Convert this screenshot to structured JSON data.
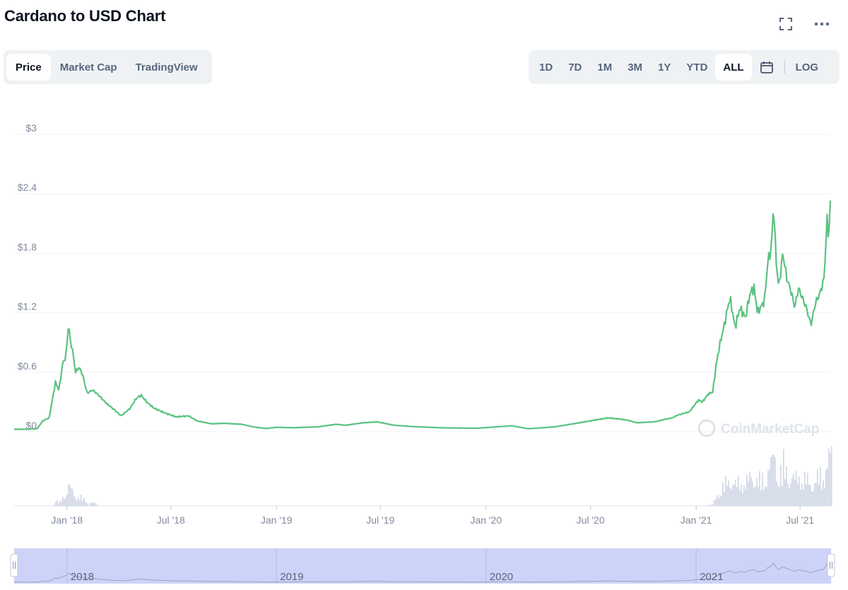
{
  "header": {
    "title": "Cardano to USD Chart",
    "fullscreen_icon": "fullscreen-icon",
    "more_icon": "more-icon"
  },
  "view_tabs": [
    {
      "label": "Price",
      "active": true
    },
    {
      "label": "Market Cap",
      "active": false
    },
    {
      "label": "TradingView",
      "active": false
    }
  ],
  "range_tabs": [
    {
      "label": "1D",
      "active": false
    },
    {
      "label": "7D",
      "active": false
    },
    {
      "label": "1M",
      "active": false
    },
    {
      "label": "3M",
      "active": false
    },
    {
      "label": "1Y",
      "active": false
    },
    {
      "label": "YTD",
      "active": false
    },
    {
      "label": "ALL",
      "active": true
    }
  ],
  "calendar_icon": "calendar-icon",
  "log_label": "LOG",
  "watermark": "CoinMarketCap",
  "colors": {
    "line": "#5bc281",
    "volume": "#cfd6e4",
    "navigator": "#cdd3f8",
    "grid": "#eff2f5",
    "axis_text": "#808a9d"
  },
  "chart_data": {
    "type": "line",
    "title": "Cardano to USD Chart",
    "x_unit": "date",
    "y_ticks": [
      {
        "value": 0,
        "label": "$0"
      },
      {
        "value": 0.6,
        "label": "$0.6"
      },
      {
        "value": 1.2,
        "label": "$1.2"
      },
      {
        "value": 1.8,
        "label": "$1.8"
      },
      {
        "value": 2.4,
        "label": "$2.4"
      },
      {
        "value": 3.0,
        "label": "$3"
      }
    ],
    "ylim": [
      0,
      3.0
    ],
    "xlim": [
      "2017-10-01",
      "2021-08-24"
    ],
    "x_ticks": [
      {
        "date": "2018-01-01",
        "label": "Jan '18"
      },
      {
        "date": "2018-07-01",
        "label": "Jul '18"
      },
      {
        "date": "2019-01-01",
        "label": "Jan '19"
      },
      {
        "date": "2019-07-01",
        "label": "Jul '19"
      },
      {
        "date": "2020-01-01",
        "label": "Jan '20"
      },
      {
        "date": "2020-07-01",
        "label": "Jul '20"
      },
      {
        "date": "2021-01-01",
        "label": "Jan '21"
      },
      {
        "date": "2021-07-01",
        "label": "Jul '21"
      }
    ],
    "grid": true,
    "series": [
      {
        "points": [
          [
            "2017-10-01",
            0.025
          ],
          [
            "2017-10-20",
            0.025
          ],
          [
            "2017-11-10",
            0.03
          ],
          [
            "2017-11-20",
            0.11
          ],
          [
            "2017-12-01",
            0.14
          ],
          [
            "2017-12-12",
            0.5
          ],
          [
            "2017-12-18",
            0.42
          ],
          [
            "2017-12-25",
            0.7
          ],
          [
            "2017-12-30",
            0.75
          ],
          [
            "2018-01-04",
            1.1
          ],
          [
            "2018-01-07",
            0.9
          ],
          [
            "2018-01-10",
            0.85
          ],
          [
            "2018-01-16",
            0.6
          ],
          [
            "2018-01-22",
            0.65
          ],
          [
            "2018-01-28",
            0.58
          ],
          [
            "2018-02-05",
            0.39
          ],
          [
            "2018-02-15",
            0.42
          ],
          [
            "2018-02-25",
            0.37
          ],
          [
            "2018-03-10",
            0.29
          ],
          [
            "2018-03-25",
            0.22
          ],
          [
            "2018-04-05",
            0.16
          ],
          [
            "2018-04-20",
            0.23
          ],
          [
            "2018-05-01",
            0.33
          ],
          [
            "2018-05-10",
            0.37
          ],
          [
            "2018-05-20",
            0.3
          ],
          [
            "2018-06-01",
            0.24
          ],
          [
            "2018-06-20",
            0.19
          ],
          [
            "2018-07-10",
            0.15
          ],
          [
            "2018-08-01",
            0.16
          ],
          [
            "2018-08-15",
            0.11
          ],
          [
            "2018-09-10",
            0.08
          ],
          [
            "2018-10-01",
            0.085
          ],
          [
            "2018-11-01",
            0.075
          ],
          [
            "2018-11-25",
            0.045
          ],
          [
            "2018-12-15",
            0.033
          ],
          [
            "2019-01-01",
            0.045
          ],
          [
            "2019-02-01",
            0.04
          ],
          [
            "2019-03-15",
            0.05
          ],
          [
            "2019-04-15",
            0.075
          ],
          [
            "2019-05-01",
            0.065
          ],
          [
            "2019-06-01",
            0.09
          ],
          [
            "2019-06-25",
            0.1
          ],
          [
            "2019-07-25",
            0.065
          ],
          [
            "2019-09-01",
            0.05
          ],
          [
            "2019-10-15",
            0.04
          ],
          [
            "2019-12-15",
            0.035
          ],
          [
            "2020-02-15",
            0.06
          ],
          [
            "2020-03-15",
            0.03
          ],
          [
            "2020-05-01",
            0.05
          ],
          [
            "2020-06-01",
            0.08
          ],
          [
            "2020-07-01",
            0.11
          ],
          [
            "2020-08-01",
            0.14
          ],
          [
            "2020-09-01",
            0.12
          ],
          [
            "2020-09-20",
            0.09
          ],
          [
            "2020-10-20",
            0.1
          ],
          [
            "2020-11-20",
            0.14
          ],
          [
            "2020-12-01",
            0.17
          ],
          [
            "2020-12-20",
            0.2
          ],
          [
            "2021-01-05",
            0.32
          ],
          [
            "2021-01-12",
            0.3
          ],
          [
            "2021-01-22",
            0.38
          ],
          [
            "2021-01-30",
            0.4
          ],
          [
            "2021-02-05",
            0.68
          ],
          [
            "2021-02-12",
            0.9
          ],
          [
            "2021-02-20",
            1.1
          ],
          [
            "2021-02-25",
            1.25
          ],
          [
            "2021-03-01",
            1.35
          ],
          [
            "2021-03-10",
            1.05
          ],
          [
            "2021-03-18",
            1.25
          ],
          [
            "2021-03-28",
            1.15
          ],
          [
            "2021-04-05",
            1.4
          ],
          [
            "2021-04-12",
            1.45
          ],
          [
            "2021-04-18",
            1.2
          ],
          [
            "2021-04-30",
            1.32
          ],
          [
            "2021-05-06",
            1.72
          ],
          [
            "2021-05-12",
            1.85
          ],
          [
            "2021-05-16",
            2.3
          ],
          [
            "2021-05-20",
            1.75
          ],
          [
            "2021-05-25",
            1.45
          ],
          [
            "2021-06-01",
            1.8
          ],
          [
            "2021-06-08",
            1.55
          ],
          [
            "2021-06-16",
            1.4
          ],
          [
            "2021-06-22",
            1.25
          ],
          [
            "2021-06-28",
            1.45
          ],
          [
            "2021-07-05",
            1.35
          ],
          [
            "2021-07-12",
            1.25
          ],
          [
            "2021-07-20",
            1.08
          ],
          [
            "2021-07-28",
            1.3
          ],
          [
            "2021-08-05",
            1.4
          ],
          [
            "2021-08-12",
            1.55
          ],
          [
            "2021-08-17",
            2.15
          ],
          [
            "2021-08-20",
            1.95
          ],
          [
            "2021-08-24",
            2.47
          ]
        ]
      }
    ],
    "volume": {
      "shown": true
    },
    "navigator": {
      "labels": [
        {
          "date": "2018-01-01",
          "label": "2018"
        },
        {
          "date": "2019-01-01",
          "label": "2019"
        },
        {
          "date": "2020-01-01",
          "label": "2020"
        },
        {
          "date": "2021-01-01",
          "label": "2021"
        }
      ]
    }
  }
}
